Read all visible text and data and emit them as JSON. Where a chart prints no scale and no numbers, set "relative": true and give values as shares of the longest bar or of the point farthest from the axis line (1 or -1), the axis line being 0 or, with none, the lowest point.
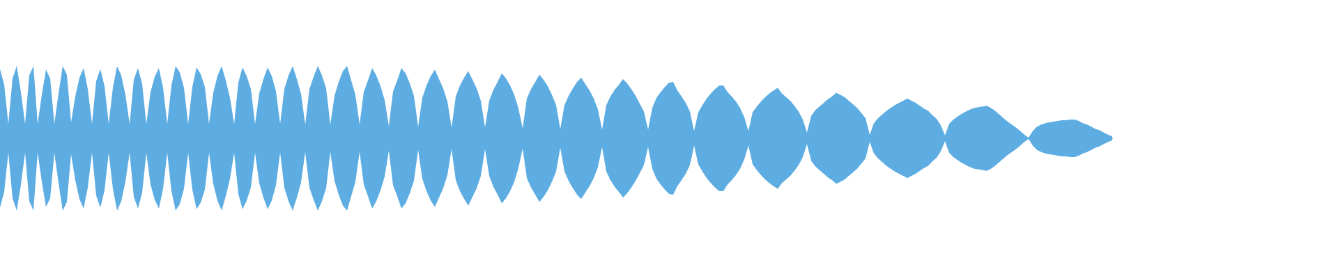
{
  "chart_data": {
    "type": "area",
    "relative": true,
    "categories": [
      null,
      null,
      null,
      null,
      null,
      null,
      null,
      null,
      null,
      null,
      null,
      null,
      null,
      null,
      null,
      null,
      null,
      null,
      null,
      null,
      null,
      null,
      null,
      null,
      null,
      null,
      null,
      null,
      null,
      null,
      null,
      null,
      null,
      null,
      null,
      null,
      null,
      null,
      null,
      null,
      null,
      null,
      null,
      null,
      null,
      null,
      null,
      null,
      null,
      null,
      null,
      null,
      null,
      null,
      null,
      null,
      null,
      null,
      null,
      null,
      null,
      null,
      null,
      null,
      null,
      null,
      null,
      null,
      null,
      null,
      null,
      null,
      null,
      null,
      null,
      null,
      null,
      null,
      null,
      null,
      null,
      null,
      null,
      null,
      null,
      null,
      null,
      null,
      null,
      null,
      null,
      null,
      null,
      null,
      null,
      null,
      null,
      null,
      null,
      null,
      null,
      null,
      null,
      null,
      null,
      null,
      null,
      null,
      null,
      null,
      null,
      null,
      null,
      null,
      null,
      null,
      null,
      null,
      null,
      null,
      null,
      null,
      null,
      null,
      null,
      null,
      null,
      null,
      null,
      null,
      null,
      null,
      null,
      null,
      null,
      null,
      null,
      null,
      null,
      null,
      null,
      null,
      null,
      null,
      null,
      null,
      null,
      null,
      null,
      null,
      null,
      null,
      null,
      null,
      null,
      null,
      null,
      null,
      null,
      null,
      null,
      null,
      null,
      null,
      null,
      null,
      null,
      null,
      null,
      null,
      null,
      null,
      null,
      null,
      null,
      null,
      null,
      null,
      null,
      null,
      null,
      null,
      null,
      null,
      null,
      null,
      null,
      null,
      null,
      null,
      null,
      null,
      null,
      null,
      null,
      null,
      null,
      null,
      null,
      null,
      null,
      null,
      null,
      null,
      null,
      null,
      null,
      null,
      null,
      null,
      null,
      null,
      null,
      null,
      null,
      null,
      null,
      null,
      null,
      null,
      null,
      null,
      null,
      null,
      null,
      null,
      null,
      null,
      null,
      null,
      null,
      null,
      null,
      null,
      null,
      null,
      null,
      null,
      null,
      null,
      null,
      null,
      null,
      null,
      null,
      null,
      null,
      null,
      null,
      null,
      null,
      null,
      null,
      null,
      null,
      null,
      null,
      null,
      null,
      null,
      null,
      null,
      null,
      null,
      null,
      null,
      null
    ],
    "series": [
      {
        "color": "#5dade2",
        "values": [
          0.96,
          0.74,
          0.2,
          0.83,
          1,
          0.64,
          0.2,
          0.87,
          1,
          0.2,
          0.6,
          0.95,
          0.83,
          0.2,
          0.62,
          1,
          0.88,
          0.22,
          0.58,
          0.84,
          0.97,
          0.68,
          0.2,
          0.79,
          0.96,
          0.72,
          0.2,
          0.7,
          1,
          0.87,
          0.6,
          0.2,
          0.81,
          0.97,
          0.75,
          0.2,
          0.64,
          0.85,
          0.97,
          0.7,
          0.2,
          0.73,
          1,
          0.91,
          0.7,
          0.2,
          0.71,
          0.98,
          0.89,
          0.71,
          0.2,
          0.63,
          0.86,
          1,
          0.8,
          0.56,
          0.2,
          0.77,
          0.98,
          0.86,
          0.68,
          0.2,
          0.62,
          0.82,
          0.98,
          0.86,
          0.65,
          0.2,
          0.68,
          0.87,
          1,
          0.82,
          0.61,
          0.19,
          0.68,
          0.85,
          1,
          0.87,
          0.69,
          0.19,
          0.59,
          0.78,
          0.93,
          1,
          0.8,
          0.6,
          0.19,
          0.64,
          0.8,
          0.97,
          0.87,
          0.72,
          0.53,
          0.17,
          0.65,
          0.8,
          0.97,
          0.9,
          0.76,
          0.59,
          0.16,
          0.56,
          0.73,
          0.86,
          0.95,
          0.82,
          0.69,
          0.51,
          0.15,
          0.58,
          0.73,
          0.84,
          0.93,
          0.81,
          0.69,
          0.52,
          0.15,
          0.52,
          0.67,
          0.78,
          0.9,
          0.83,
          0.73,
          0.6,
          0.41,
          0.14,
          0.55,
          0.68,
          0.78,
          0.88,
          0.81,
          0.72,
          0.6,
          0.46,
          0.13,
          0.46,
          0.59,
          0.69,
          0.78,
          0.84,
          0.75,
          0.66,
          0.55,
          0.4,
          0.12,
          0.46,
          0.58,
          0.67,
          0.74,
          0.82,
          0.76,
          0.68,
          0.59,
          0.48,
          0.37,
          0.12,
          0.42,
          0.56,
          0.64,
          0.71,
          0.77,
          0.78,
          0.66,
          0.58,
          0.49,
          0.37,
          0.1,
          0.36,
          0.46,
          0.55,
          0.62,
          0.68,
          0.73,
          0.73,
          0.64,
          0.58,
          0.51,
          0.42,
          0.29,
          0.1,
          0.36,
          0.44,
          0.51,
          0.57,
          0.62,
          0.66,
          0.7,
          0.62,
          0.57,
          0.52,
          0.45,
          0.37,
          0.26,
          0.08,
          0.31,
          0.39,
          0.44,
          0.49,
          0.54,
          0.58,
          0.63,
          0.6,
          0.57,
          0.52,
          0.47,
          0.42,
          0.35,
          0.28,
          0.05,
          0.21,
          0.28,
          0.33,
          0.38,
          0.42,
          0.46,
          0.49,
          0.52,
          0.55,
          0.52,
          0.49,
          0.45,
          0.41,
          0.38,
          0.32,
          0.27,
          0.18,
          0.04,
          0.2,
          0.26,
          0.3,
          0.34,
          0.37,
          0.4,
          0.42,
          0.43,
          0.44,
          0.45,
          0.42,
          0.38,
          0.33,
          0.28,
          0.23,
          0.19,
          0.15,
          0.1,
          0.05,
          0.01,
          0.1,
          0.16,
          0.19,
          0.21,
          0.22,
          0.23,
          0.24,
          0.25,
          0.25,
          0.26,
          0.26,
          0.24,
          0.21,
          0.19,
          0.16,
          0.13,
          0.11,
          0.08,
          0.05,
          0.03
        ]
      },
      {
        "color": "#5dade2",
        "values": [
          -0.96,
          -0.74,
          -0.2,
          -0.83,
          -1,
          -0.64,
          -0.2,
          -0.87,
          -1,
          -0.2,
          -0.6,
          -0.95,
          -0.83,
          -0.2,
          -0.62,
          -1,
          -0.88,
          -0.22,
          -0.58,
          -0.84,
          -0.97,
          -0.68,
          -0.2,
          -0.79,
          -0.96,
          -0.72,
          -0.2,
          -0.7,
          -1,
          -0.87,
          -0.6,
          -0.2,
          -0.81,
          -0.97,
          -0.75,
          -0.2,
          -0.64,
          -0.85,
          -0.97,
          -0.7,
          -0.2,
          -0.73,
          -1,
          -0.91,
          -0.7,
          -0.2,
          -0.71,
          -0.98,
          -0.89,
          -0.71,
          -0.2,
          -0.63,
          -0.86,
          -1,
          -0.8,
          -0.56,
          -0.2,
          -0.77,
          -0.98,
          -0.86,
          -0.68,
          -0.2,
          -0.62,
          -0.82,
          -0.98,
          -0.86,
          -0.65,
          -0.2,
          -0.68,
          -0.87,
          -1,
          -0.82,
          -0.61,
          -0.19,
          -0.68,
          -0.85,
          -1,
          -0.87,
          -0.69,
          -0.19,
          -0.59,
          -0.78,
          -0.93,
          -1,
          -0.8,
          -0.6,
          -0.19,
          -0.64,
          -0.8,
          -0.97,
          -0.87,
          -0.72,
          -0.53,
          -0.17,
          -0.65,
          -0.8,
          -0.97,
          -0.9,
          -0.76,
          -0.59,
          -0.16,
          -0.56,
          -0.73,
          -0.86,
          -0.95,
          -0.82,
          -0.69,
          -0.51,
          -0.15,
          -0.58,
          -0.73,
          -0.84,
          -0.93,
          -0.81,
          -0.69,
          -0.52,
          -0.15,
          -0.52,
          -0.67,
          -0.78,
          -0.9,
          -0.83,
          -0.73,
          -0.6,
          -0.41,
          -0.14,
          -0.55,
          -0.68,
          -0.78,
          -0.88,
          -0.81,
          -0.72,
          -0.6,
          -0.46,
          -0.13,
          -0.46,
          -0.59,
          -0.69,
          -0.78,
          -0.84,
          -0.75,
          -0.66,
          -0.55,
          -0.4,
          -0.12,
          -0.46,
          -0.58,
          -0.67,
          -0.74,
          -0.82,
          -0.76,
          -0.68,
          -0.59,
          -0.48,
          -0.37,
          -0.12,
          -0.42,
          -0.56,
          -0.64,
          -0.71,
          -0.77,
          -0.78,
          -0.66,
          -0.58,
          -0.49,
          -0.37,
          -0.1,
          -0.36,
          -0.46,
          -0.55,
          -0.62,
          -0.68,
          -0.73,
          -0.73,
          -0.64,
          -0.58,
          -0.51,
          -0.42,
          -0.29,
          -0.1,
          -0.36,
          -0.44,
          -0.51,
          -0.57,
          -0.62,
          -0.66,
          -0.7,
          -0.62,
          -0.57,
          -0.52,
          -0.45,
          -0.37,
          -0.26,
          -0.08,
          -0.31,
          -0.39,
          -0.44,
          -0.49,
          -0.54,
          -0.58,
          -0.63,
          -0.6,
          -0.57,
          -0.52,
          -0.47,
          -0.42,
          -0.35,
          -0.28,
          -0.05,
          -0.21,
          -0.28,
          -0.33,
          -0.38,
          -0.42,
          -0.46,
          -0.49,
          -0.52,
          -0.55,
          -0.52,
          -0.49,
          -0.45,
          -0.41,
          -0.38,
          -0.32,
          -0.27,
          -0.18,
          -0.04,
          -0.2,
          -0.26,
          -0.3,
          -0.34,
          -0.37,
          -0.4,
          -0.42,
          -0.43,
          -0.44,
          -0.45,
          -0.42,
          -0.38,
          -0.33,
          -0.28,
          -0.23,
          -0.19,
          -0.15,
          -0.1,
          -0.05,
          -0.01,
          -0.1,
          -0.16,
          -0.19,
          -0.21,
          -0.22,
          -0.23,
          -0.24,
          -0.25,
          -0.25,
          -0.26,
          -0.26,
          -0.24,
          -0.21,
          -0.19,
          -0.16,
          -0.13,
          -0.11,
          -0.08,
          -0.05,
          -0.03
        ]
      }
    ]
  }
}
